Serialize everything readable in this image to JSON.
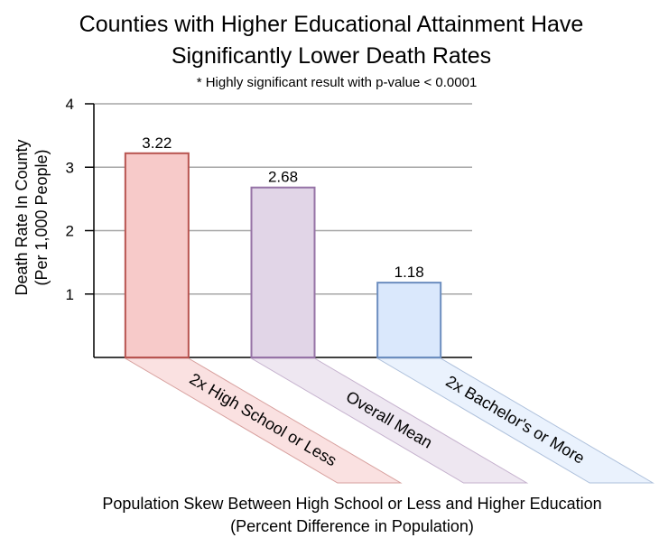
{
  "chart_data": {
    "type": "bar",
    "title_lines": [
      "Counties with Higher Educational Attainment Have",
      "Significantly Lower Death Rates"
    ],
    "subtitle": "* Highly significant result with p-value < 0.0001",
    "categories": [
      "2x High School or Less",
      "Overall Mean",
      "2x Bachelor's or More"
    ],
    "values": [
      3.22,
      2.68,
      1.18
    ],
    "value_labels": [
      "3.22",
      "2.68",
      "1.18"
    ],
    "ylabel_lines": [
      "Death Rate In County",
      "(Per 1,000 People)"
    ],
    "xlabel_lines": [
      "Population Skew Between High School or Less and Higher Education",
      "(Percent Difference in Population)"
    ],
    "ylim": [
      0,
      4
    ],
    "yticks": [
      1,
      2,
      3,
      4
    ],
    "grid": true,
    "colors": {
      "fills": [
        "#f7cac9",
        "#e1d5e7",
        "#dae8fc"
      ],
      "strokes": [
        "#b85450",
        "#9673a6",
        "#6c8ebf"
      ],
      "grid": "#a6a6a6",
      "axis": "#000000"
    }
  }
}
